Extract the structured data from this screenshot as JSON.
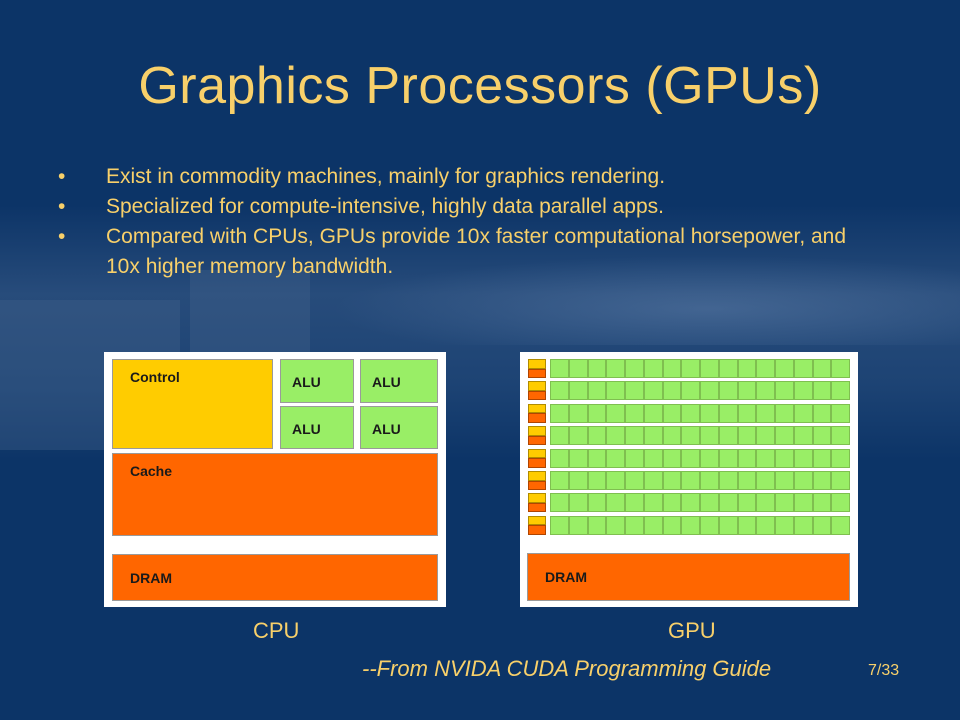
{
  "slide": {
    "title": "Graphics Processors (GPUs)",
    "bullet_marker": "•",
    "bullets": [
      "Exist in commodity machines, mainly for graphics rendering.",
      "Specialized for compute-intensive, highly data parallel apps.",
      "Compared with CPUs, GPUs provide 10x faster computational horsepower, and 10x higher memory bandwidth."
    ],
    "source": "--From NVIDA CUDA Programming Guide",
    "page_number": "7/33"
  },
  "diagram": {
    "cpu": {
      "caption": "CPU",
      "control_label": "Control",
      "alu_labels": [
        "ALU",
        "ALU",
        "ALU",
        "ALU"
      ],
      "cache_label": "Cache",
      "dram_label": "DRAM"
    },
    "gpu": {
      "caption": "GPU",
      "dram_label": "DRAM",
      "rows": 8,
      "alus_per_row": 16
    },
    "colors": {
      "control": "#ffcc00",
      "cache": "#ff6600",
      "alu": "#99ee66",
      "dram": "#ff6600",
      "text": "#f8d06a",
      "background": "#0c3467"
    }
  }
}
